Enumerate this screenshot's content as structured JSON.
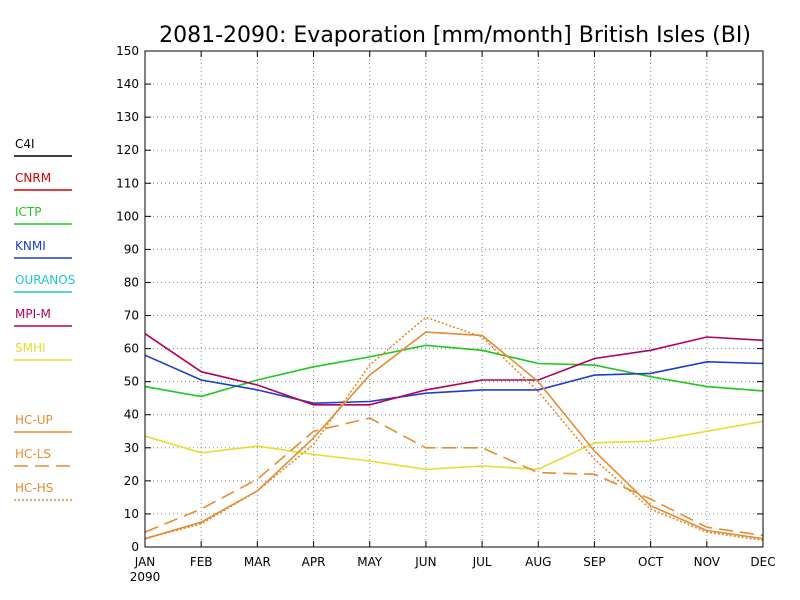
{
  "chart_data": {
    "type": "line",
    "title": "2081-2090: Evaporation [mm/month] British Isles (BI)",
    "x_ticks": [
      "JAN",
      "FEB",
      "MAR",
      "APR",
      "MAY",
      "JUN",
      "JUL",
      "AUG",
      "SEP",
      "OCT",
      "NOV",
      "DEC"
    ],
    "x_sublabel": "2090",
    "y_ticks": [
      "0",
      "10",
      "20",
      "30",
      "40",
      "50",
      "60",
      "70",
      "80",
      "90",
      "100",
      "110",
      "120",
      "130",
      "140",
      "150"
    ],
    "ylim": [
      0,
      150
    ],
    "grid": true,
    "legend_position": "left",
    "series": [
      {
        "name": "C4I",
        "color": "#000000",
        "dash": "solid",
        "values": []
      },
      {
        "name": "CNRM",
        "color": "#d40000",
        "dash": "solid",
        "values": []
      },
      {
        "name": "ICTP",
        "color": "#1ec81e",
        "dash": "solid",
        "values": [
          48.5,
          45.5,
          50.5,
          54.5,
          57.5,
          61,
          59.5,
          55.5,
          55,
          51.5,
          48.5,
          47.2
        ]
      },
      {
        "name": "KNMI",
        "color": "#1e3cd2",
        "dash": "solid",
        "values": [
          58,
          50.5,
          47.5,
          43.5,
          44,
          46.5,
          47.5,
          47.5,
          52,
          52.5,
          56,
          55.5
        ]
      },
      {
        "name": "OURANOS",
        "color": "#1ec8c8",
        "dash": "solid",
        "values": []
      },
      {
        "name": "MPI-M",
        "color": "#b4005a",
        "dash": "solid",
        "values": [
          64.5,
          53,
          49,
          43,
          43,
          47.5,
          50.5,
          50.5,
          57,
          59.5,
          63.5,
          62.5
        ]
      },
      {
        "name": "SMHI",
        "color": "#e6dc32",
        "dash": "solid",
        "values": [
          33.5,
          28.5,
          30.5,
          28,
          26,
          23.5,
          24.5,
          23.5,
          31.5,
          32,
          35,
          38
        ]
      },
      {
        "name": "HC-UP",
        "color": "#e68c32",
        "dash": "solid",
        "values": [
          2.5,
          7.5,
          17,
          33,
          52,
          65,
          64,
          50,
          29,
          12.5,
          5,
          2.5
        ]
      },
      {
        "name": "HC-LS",
        "color": "#e68c32",
        "dash": "long",
        "values": [
          4.5,
          11.5,
          20.5,
          35,
          39,
          30,
          30,
          22.5,
          22,
          14.5,
          6,
          3.5
        ]
      },
      {
        "name": "HC-HS",
        "color": "#e68c32",
        "dash": "dotted",
        "values": [
          2.5,
          7,
          17,
          31,
          55,
          69.5,
          63.5,
          47,
          26.5,
          11.5,
          4.5,
          2
        ]
      }
    ]
  }
}
